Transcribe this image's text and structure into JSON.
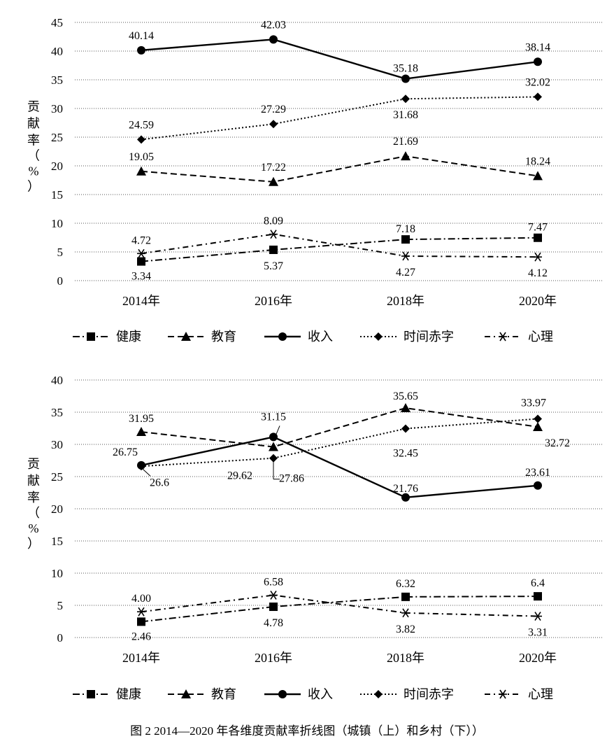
{
  "caption": "图 2   2014—2020 年各维度贡献率折线图（城镇（上）和乡村（下））",
  "chart_data": [
    {
      "type": "line",
      "title": "城镇",
      "ylabel": "贡献率（%）",
      "xlabel": "",
      "ylim": [
        0,
        45
      ],
      "yticks": [
        0,
        5,
        10,
        15,
        20,
        25,
        30,
        35,
        40,
        45
      ],
      "categories": [
        "2014年",
        "2016年",
        "2018年",
        "2020年"
      ],
      "grid": "horizontal dotted",
      "legend": "bottom",
      "series": [
        {
          "name": "健康",
          "marker": "square",
          "dash": "dashdot",
          "values": [
            3.34,
            5.37,
            7.18,
            7.47
          ],
          "labels": [
            "3.34",
            "5.37",
            "7.18",
            "7.47"
          ]
        },
        {
          "name": "教育",
          "marker": "triangle",
          "dash": "dashed",
          "values": [
            19.05,
            17.22,
            21.69,
            18.24
          ],
          "labels": [
            "19.05",
            "17.22",
            "21.69",
            "18.24"
          ]
        },
        {
          "name": "收入",
          "marker": "circle",
          "dash": "solid",
          "values": [
            40.14,
            42.03,
            35.18,
            38.14
          ],
          "labels": [
            "40.14",
            "42.03",
            "35.18",
            "38.14"
          ]
        },
        {
          "name": "时间赤字",
          "marker": "diamond",
          "dash": "dotted",
          "values": [
            24.59,
            27.29,
            31.68,
            32.02
          ],
          "labels": [
            "24.59",
            "27.29",
            "31.68",
            "32.02"
          ]
        },
        {
          "name": "心理",
          "marker": "asterisk",
          "dash": "dashdot2",
          "values": [
            4.72,
            8.09,
            4.27,
            4.12
          ],
          "labels": [
            "4.72",
            "8.09",
            "4.27",
            "4.12"
          ]
        }
      ]
    },
    {
      "type": "line",
      "title": "乡村",
      "ylabel": "贡献率（%）",
      "xlabel": "",
      "ylim": [
        0,
        40
      ],
      "yticks": [
        0,
        5,
        10,
        15,
        20,
        25,
        30,
        35,
        40
      ],
      "categories": [
        "2014年",
        "2016年",
        "2018年",
        "2020年"
      ],
      "grid": "horizontal dotted",
      "legend": "bottom",
      "series": [
        {
          "name": "健康",
          "marker": "square",
          "dash": "dashdot",
          "values": [
            2.46,
            4.78,
            6.32,
            6.4
          ],
          "labels": [
            "2.46",
            "4.78",
            "6.32",
            "6.4"
          ]
        },
        {
          "name": "教育",
          "marker": "triangle",
          "dash": "dashed",
          "values": [
            31.95,
            29.62,
            35.65,
            32.72
          ],
          "labels": [
            "31.95",
            "29.62",
            "35.65",
            "32.72"
          ]
        },
        {
          "name": "收入",
          "marker": "circle",
          "dash": "solid",
          "values": [
            26.75,
            31.15,
            21.76,
            23.61
          ],
          "labels": [
            "26.75",
            "31.15",
            "21.76",
            "23.61"
          ]
        },
        {
          "name": "时间赤字",
          "marker": "diamond",
          "dash": "dotted",
          "values": [
            26.6,
            27.86,
            32.45,
            33.97
          ],
          "labels": [
            "26.6",
            "27.86",
            "32.45",
            "33.97"
          ]
        },
        {
          "name": "心理",
          "marker": "asterisk",
          "dash": "dashdot2",
          "values": [
            4.0,
            6.58,
            3.82,
            3.31
          ],
          "labels": [
            "4.00",
            "6.58",
            "3.82",
            "3.31"
          ]
        }
      ]
    }
  ]
}
